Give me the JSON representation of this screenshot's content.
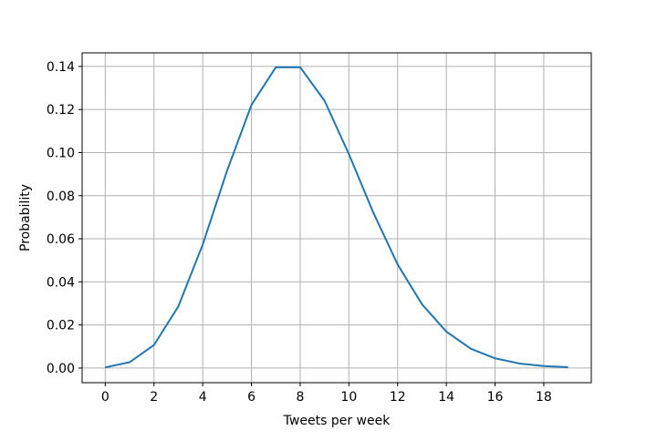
{
  "chart_data": {
    "type": "line",
    "x_label": "Tweets per week",
    "y_label": "Probability",
    "x": [
      0,
      1,
      2,
      3,
      4,
      5,
      6,
      7,
      8,
      9,
      10,
      11,
      12,
      13,
      14,
      15,
      16,
      17,
      18,
      19
    ],
    "series": [
      {
        "color": "#1f77b4",
        "values": [
          0.0003,
          0.0027,
          0.0107,
          0.0286,
          0.0573,
          0.0916,
          0.1221,
          0.1396,
          0.1396,
          0.1241,
          0.0993,
          0.0722,
          0.0481,
          0.0296,
          0.0169,
          0.009,
          0.0045,
          0.0021,
          0.0009,
          0.0004
        ]
      }
    ],
    "xlim": [
      -0.95,
      19.95
    ],
    "ylim": [
      -0.0068,
      0.1463
    ],
    "xticks": [
      0,
      2,
      4,
      6,
      8,
      10,
      12,
      14,
      16,
      18
    ],
    "yticks": [
      {
        "value": 0,
        "label": "0.00"
      },
      {
        "value": 0.02,
        "label": "0.02"
      },
      {
        "value": 0.04,
        "label": "0.04"
      },
      {
        "value": 0.06,
        "label": "0.06"
      },
      {
        "value": 0.08,
        "label": "0.08"
      },
      {
        "value": 0.1,
        "label": "0.10"
      },
      {
        "value": 0.12,
        "label": "0.12"
      },
      {
        "value": 0.14,
        "label": "0.14"
      }
    ],
    "grid": true
  }
}
